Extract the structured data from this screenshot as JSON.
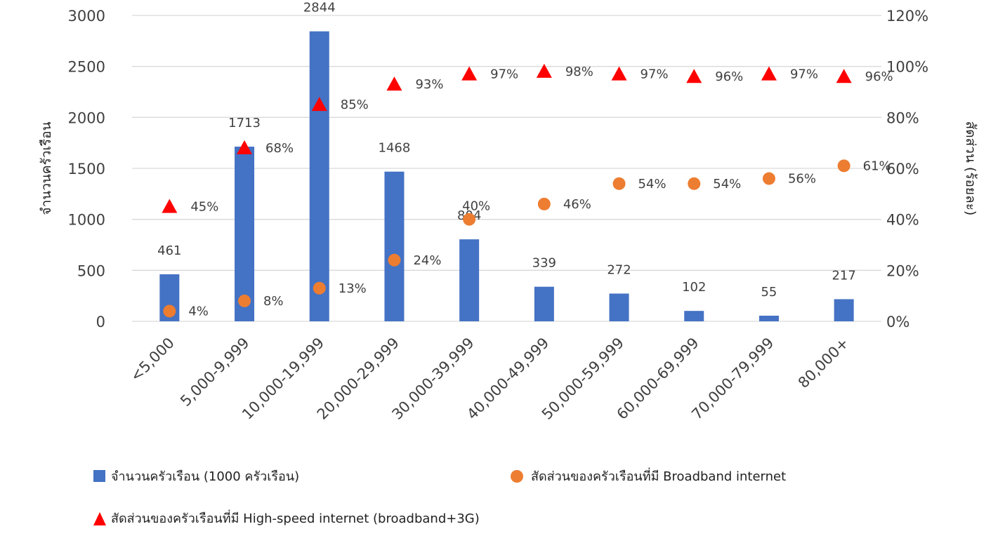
{
  "chart_data": {
    "type": "bar",
    "categories": [
      "<5,000",
      "5,000-9,999",
      "10,000-19,999",
      "20,000-29,999",
      "30,000-39,999",
      "40,000-49,999",
      "50,000-59,999",
      "60,000-69,999",
      "70,000-79,999",
      "80,000+"
    ],
    "ylabel": "จำนวนครัวเรือน",
    "y2label": "สัดส่วน (ร้อยละ)",
    "ylim": [
      0,
      3000
    ],
    "y2lim": [
      0,
      120
    ],
    "yticks": [
      "0",
      "500",
      "1000",
      "1500",
      "2000",
      "2500",
      "3000"
    ],
    "y2ticks": [
      "0%",
      "20%",
      "40%",
      "60%",
      "80%",
      "100%",
      "120%"
    ],
    "grid": true,
    "legend_position": "bottom",
    "series": [
      {
        "name": "จำนวนครัวเรือน (1000 ครัวเรือน)",
        "type": "bar",
        "axis": "left",
        "color": "#4472C4",
        "values": [
          461,
          1713,
          2844,
          1468,
          804,
          339,
          272,
          102,
          55,
          217
        ]
      },
      {
        "name": "สัดส่วนของครัวเรือนที่มี Broadband internet",
        "type": "scatter-circle",
        "axis": "right",
        "color": "#ED7D31",
        "values": [
          4,
          8,
          13,
          24,
          40,
          46,
          54,
          54,
          56,
          61
        ]
      },
      {
        "name": "สัดส่วนของครัวเรือนที่มี High-speed internet (broadband+3G)",
        "type": "scatter-triangle",
        "axis": "right",
        "color": "#FF0000",
        "values": [
          45,
          68,
          85,
          93,
          97,
          98,
          97,
          96,
          97,
          96
        ]
      }
    ]
  }
}
